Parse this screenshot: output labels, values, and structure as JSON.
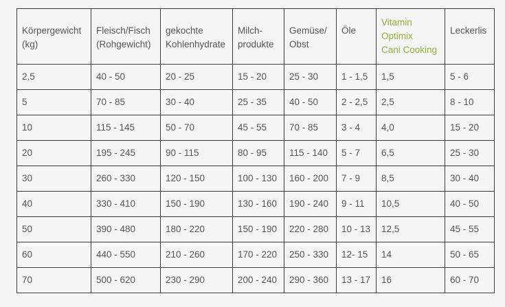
{
  "table": {
    "headers": [
      {
        "lines": [
          "Körpergewicht",
          "(kg)"
        ],
        "highlight": false
      },
      {
        "lines": [
          "Fleisch/Fisch",
          "(Rohgewicht)"
        ],
        "highlight": false
      },
      {
        "lines": [
          "gekochte",
          "Kohlenhydrate"
        ],
        "highlight": false
      },
      {
        "lines": [
          "Milch-",
          "produkte"
        ],
        "highlight": false
      },
      {
        "lines": [
          "Gemüse/",
          "Obst"
        ],
        "highlight": false
      },
      {
        "lines": [
          "Öle"
        ],
        "highlight": false
      },
      {
        "lines": [
          "Vitamin",
          "Optimix",
          "Cani Cooking"
        ],
        "highlight": true,
        "color": "#8bb13a"
      },
      {
        "lines": [
          "Leckerlis"
        ],
        "highlight": false
      }
    ],
    "rows": [
      [
        "2,5",
        "40 - 50",
        "20 - 25",
        "15 - 20",
        "25 - 30",
        "1 - 1,5",
        "1,5",
        "5 - 6"
      ],
      [
        "5",
        "70 - 85",
        "30 - 40",
        "25 - 35",
        "40 - 50",
        "2 - 2,5",
        "2,5",
        "8 - 10"
      ],
      [
        "10",
        "115 - 145",
        "50 - 70",
        "45 - 55",
        "70 - 85",
        "3 - 4",
        "4,0",
        "15 - 20"
      ],
      [
        "20",
        "195 - 245",
        "90 - 115",
        "80 - 95",
        "115 - 140",
        "5 - 7",
        "6,5",
        "25 - 30"
      ],
      [
        "30",
        "260 - 330",
        "120 - 150",
        "100 - 130",
        "160 - 200",
        "7 - 9",
        "8,5",
        "30 - 40"
      ],
      [
        "40",
        "330 - 410",
        "150 - 190",
        "130 - 160",
        "190 - 240",
        "9 - 11",
        "10,5",
        "40 - 50"
      ],
      [
        "50",
        "390 - 480",
        "180 - 220",
        "150 - 190",
        "220 - 280",
        "10 - 13",
        "12,5",
        "45 - 55"
      ],
      [
        "60",
        "440 - 550",
        "210 - 260",
        "170 - 220",
        "250 - 330",
        "12- 15",
        "14",
        "50 - 65"
      ],
      [
        "70",
        "500 - 620",
        "230 - 290",
        "200 - 240",
        "290 - 360",
        "13 - 17",
        "16",
        "60 - 70"
      ]
    ]
  }
}
